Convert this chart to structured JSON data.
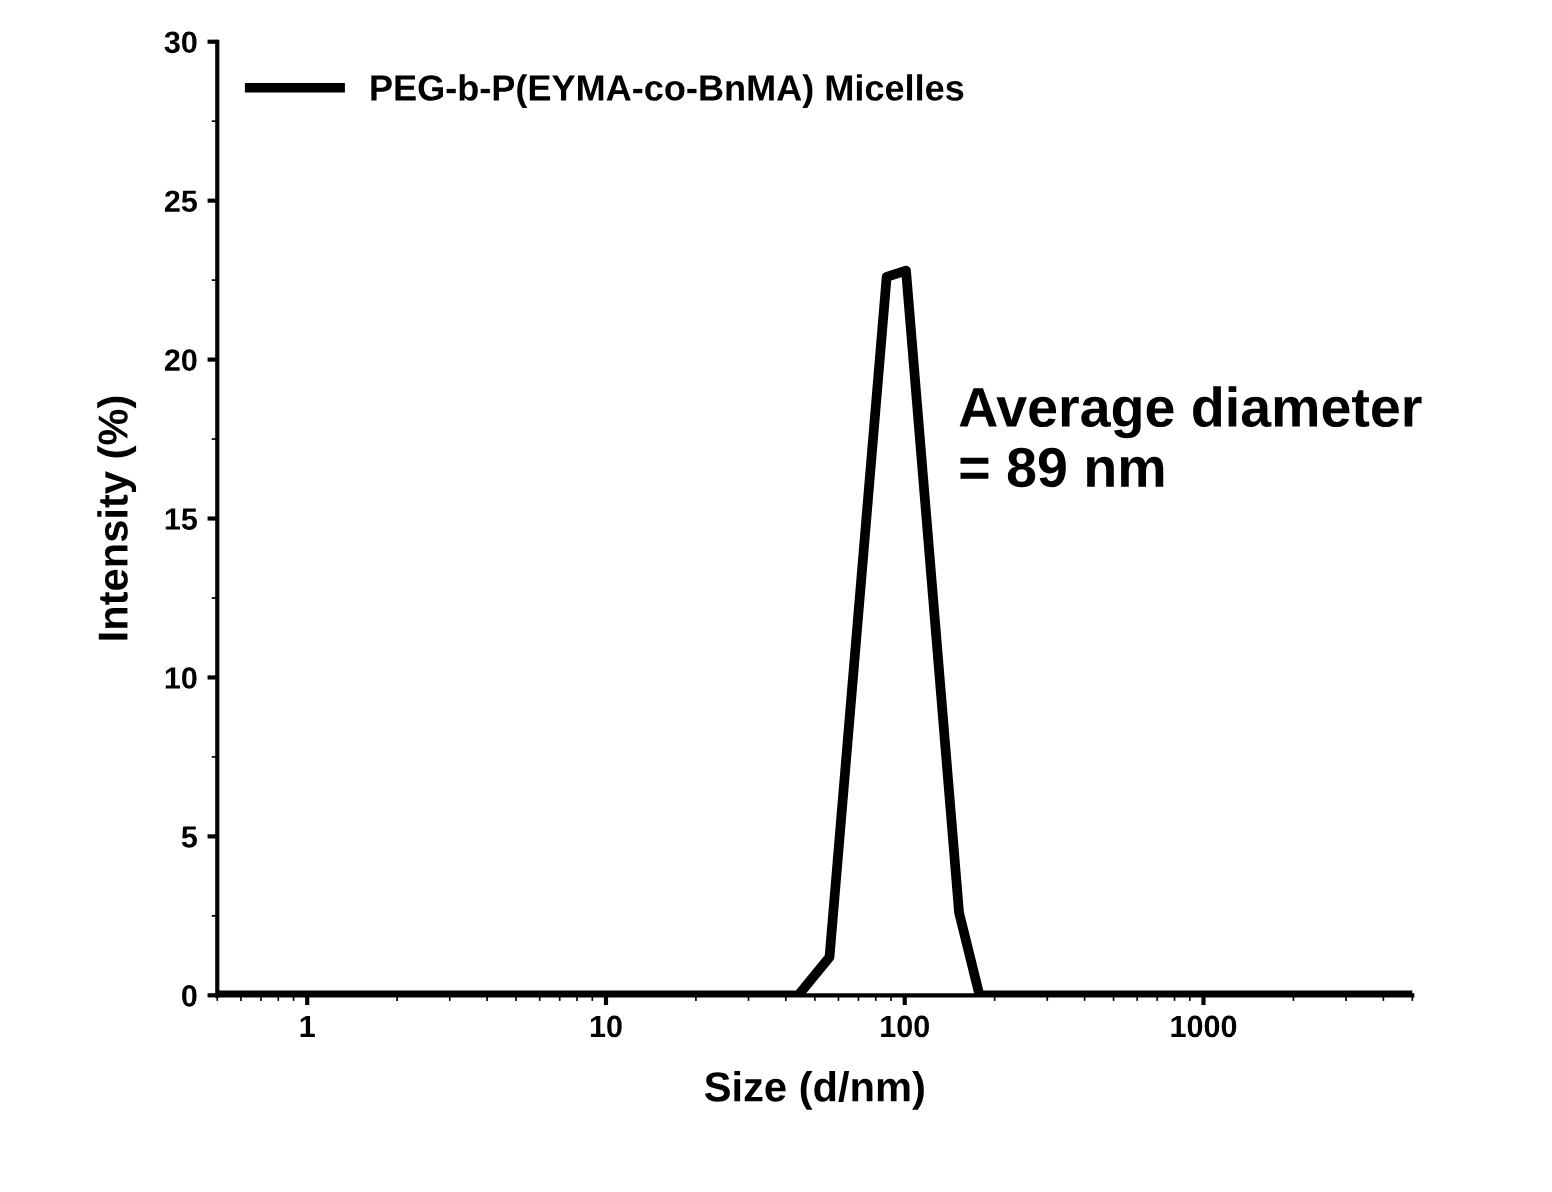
{
  "chart_data": {
    "type": "line",
    "xlabel": "Size (d/nm)",
    "ylabel": "Intensity (%)",
    "log": "x",
    "xlim": [
      0.5,
      5000
    ],
    "xticks": [
      1,
      10,
      100,
      1000
    ],
    "ylim": [
      0,
      30
    ],
    "yticks": [
      0,
      5,
      10,
      15,
      20,
      25,
      30
    ],
    "series": [
      {
        "name": "PEG-b-P(EYMA-co-BnMA) Micelles",
        "color": "#000000",
        "x": [
          0.5,
          44,
          56,
          87,
          101,
          152,
          178,
          5000
        ],
        "values": [
          0,
          0,
          1.2,
          22.6,
          22.8,
          2.6,
          0,
          0
        ]
      }
    ],
    "legend": "top left",
    "grid": false,
    "marker": "none",
    "line_style": "solid",
    "annotations": [
      "Average diameter\n= 89 nm"
    ]
  }
}
